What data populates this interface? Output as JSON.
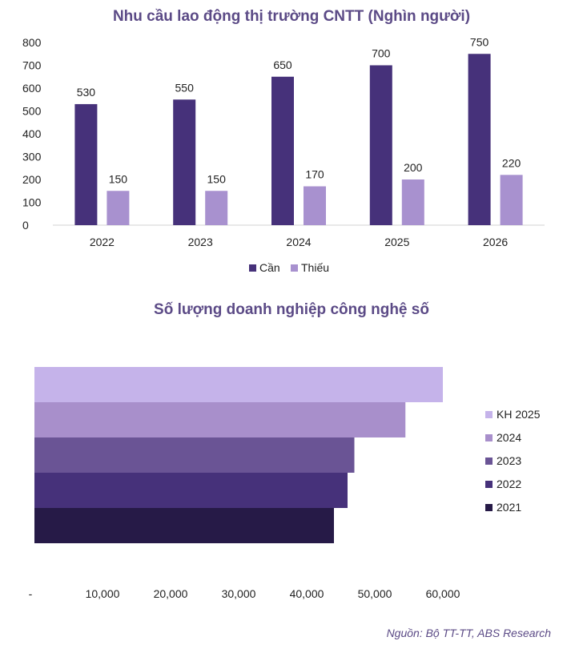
{
  "chart_data": [
    {
      "type": "bar",
      "title": "Nhu cầu lao động thị trường CNTT (Nghìn người)",
      "categories": [
        "2022",
        "2023",
        "2024",
        "2025",
        "2026"
      ],
      "series": [
        {
          "name": "Cần",
          "values": [
            530,
            550,
            650,
            700,
            750
          ],
          "color": "#46317a"
        },
        {
          "name": "Thiếu",
          "values": [
            150,
            150,
            170,
            200,
            220
          ],
          "color": "#a891cf"
        }
      ],
      "ylim": [
        0,
        800
      ],
      "yticks": [
        "0",
        "100",
        "200",
        "300",
        "400",
        "500",
        "600",
        "700",
        "800"
      ],
      "legend": "bottom"
    },
    {
      "type": "bar",
      "orientation": "horizontal",
      "title": "Số lượng doanh nghiệp công nghệ số",
      "series": [
        {
          "name": "KH 2025",
          "value": 60000,
          "color": "#c5b3ea"
        },
        {
          "name": "2024",
          "value": 54500,
          "color": "#a88fcb"
        },
        {
          "name": "2023",
          "value": 47000,
          "color": "#6a5495"
        },
        {
          "name": "2022",
          "value": 46000,
          "color": "#46317a"
        },
        {
          "name": "2021",
          "value": 44000,
          "color": "#261a47"
        }
      ],
      "xlim": [
        0,
        60000
      ],
      "xticks": [
        "-",
        "10,000",
        "20,000",
        "30,000",
        "40,000",
        "50,000",
        "60,000"
      ],
      "legend": "right"
    }
  ],
  "source": "Nguồn: Bộ TT-TT, ABS Research"
}
